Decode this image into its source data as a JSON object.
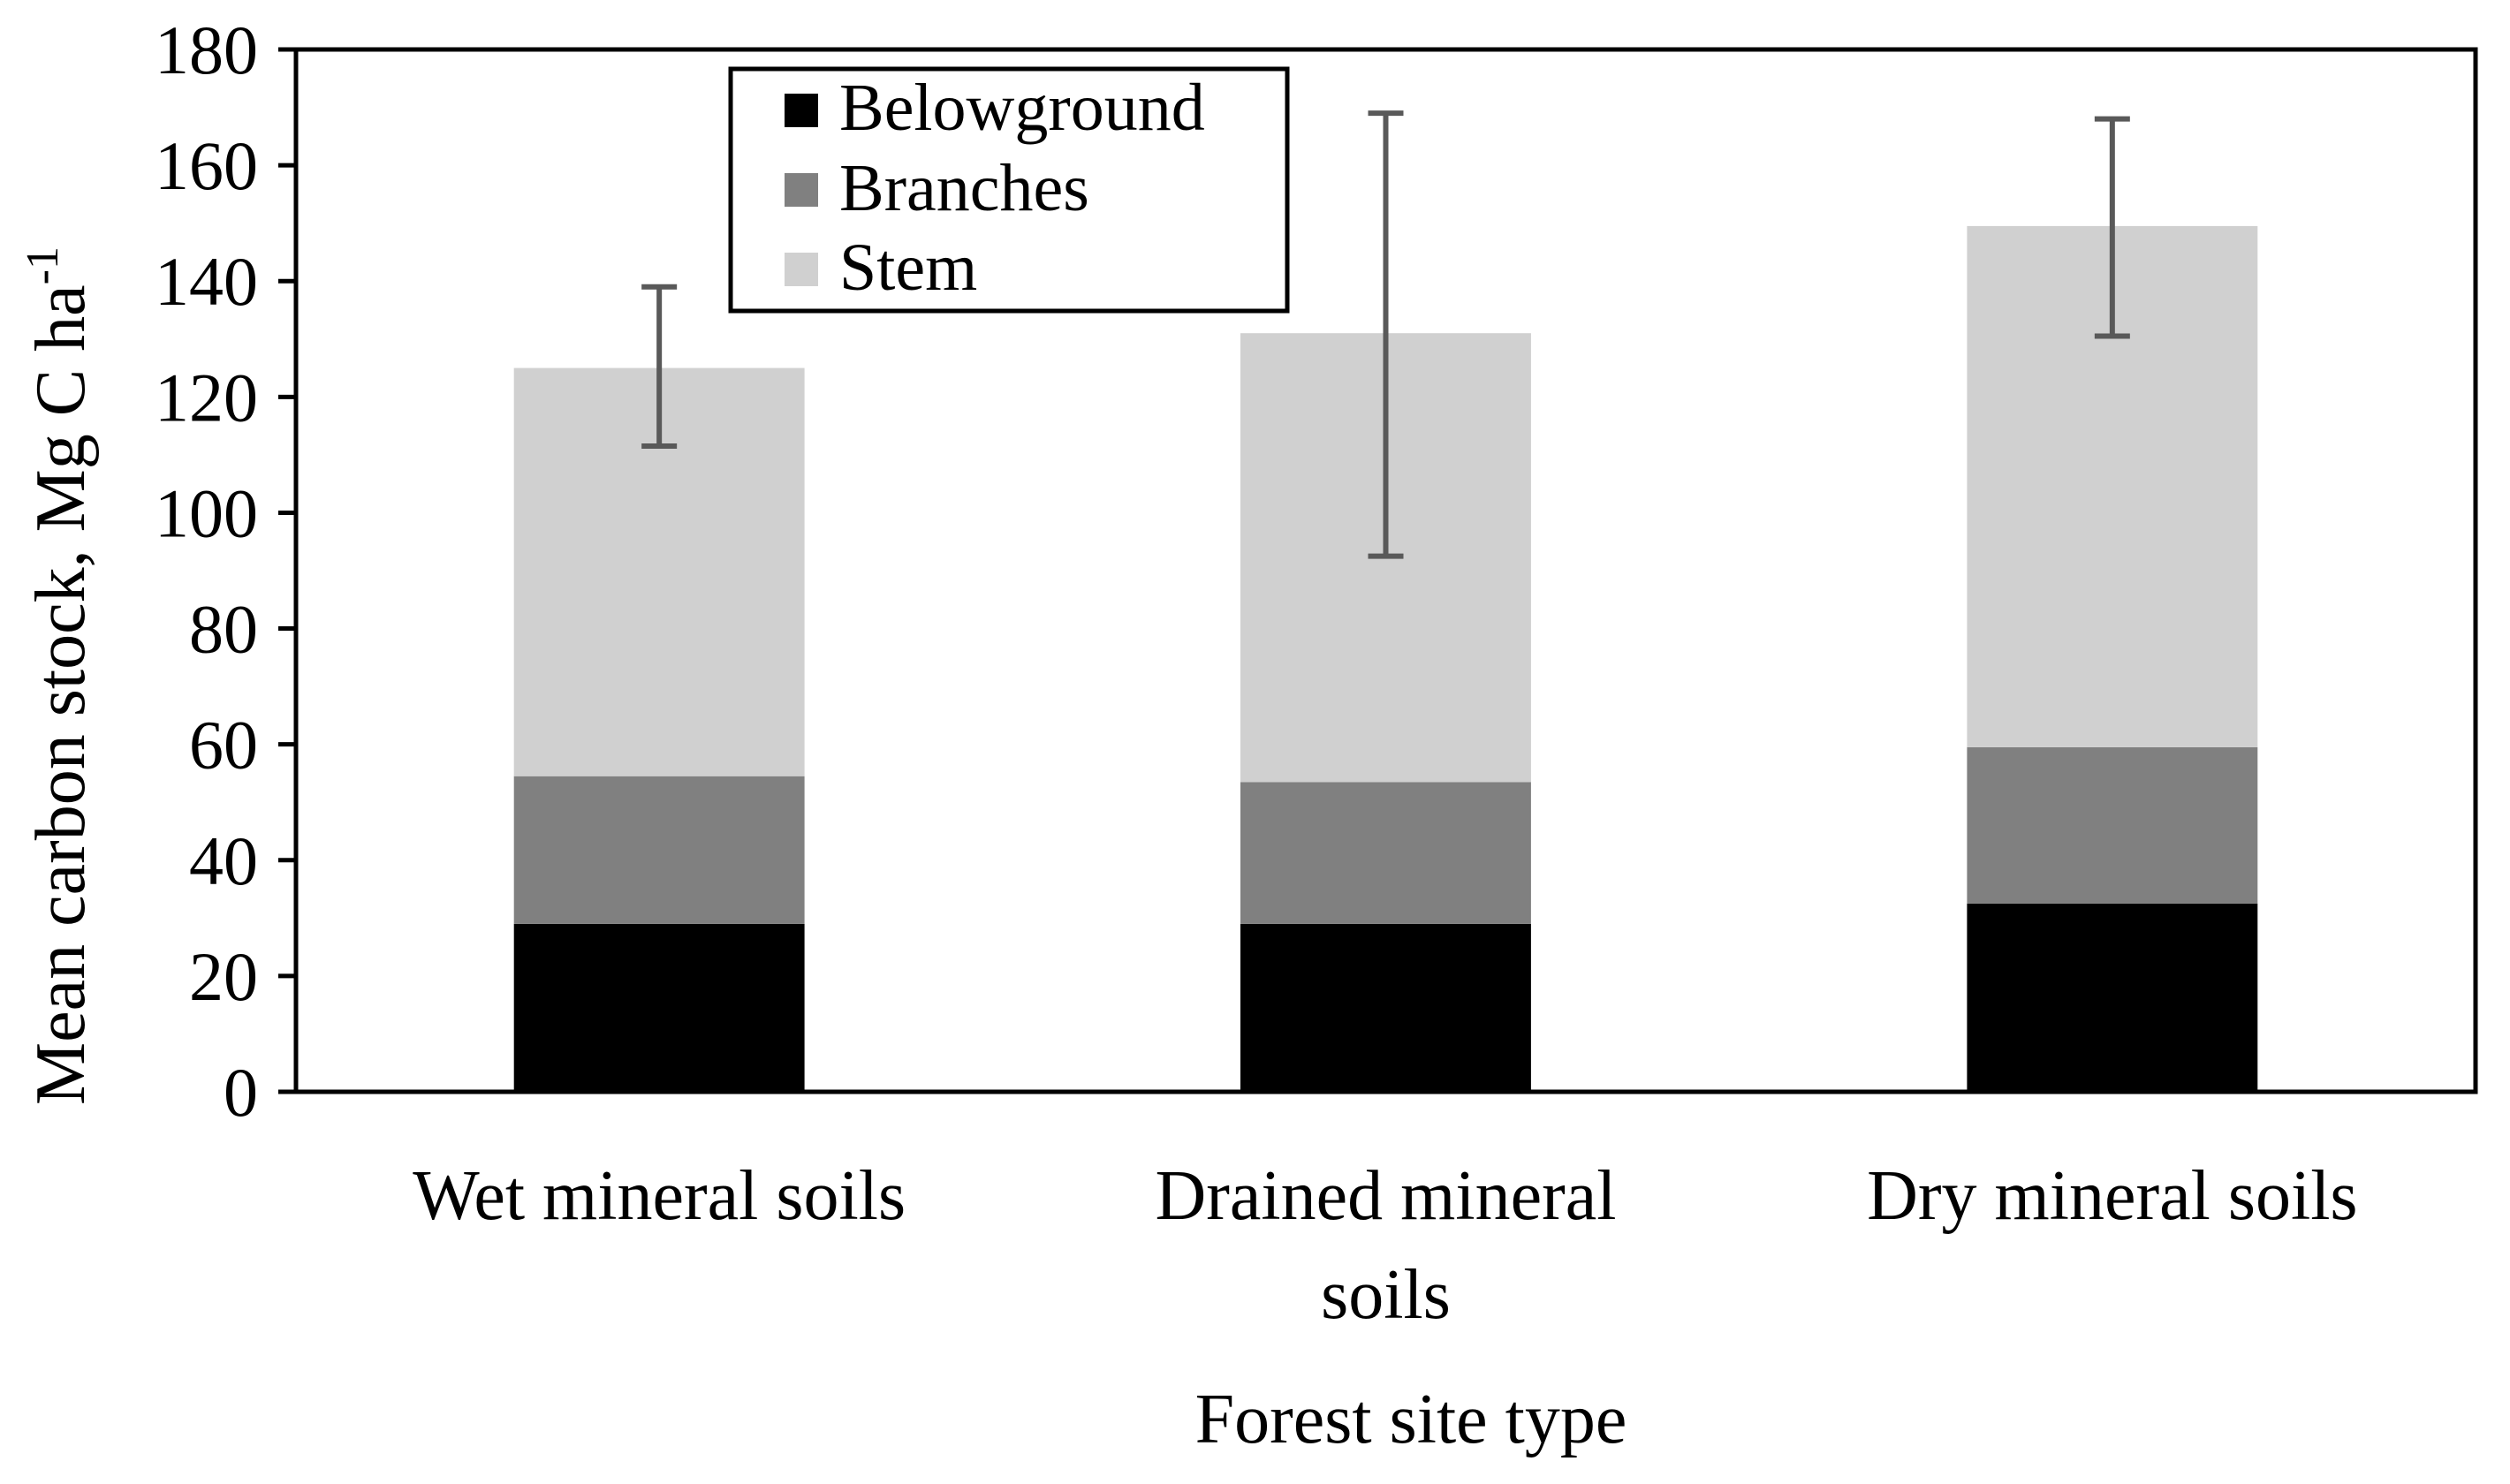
{
  "chart_data": {
    "type": "bar",
    "stacked": true,
    "categories": [
      [
        "Wet mineral soils"
      ],
      [
        "Drained mineral",
        "soils"
      ],
      [
        "Dry mineral soils"
      ]
    ],
    "series": [
      {
        "name": "Belowground",
        "color": "#000000",
        "values": [
          29,
          29,
          32.5
        ]
      },
      {
        "name": "Branches",
        "color": "#808080",
        "values": [
          25.5,
          24.5,
          27
        ]
      },
      {
        "name": "Stem",
        "color": "#d0d0d0",
        "values": [
          70.5,
          77.5,
          90
        ]
      }
    ],
    "error_bars": {
      "color": "#595959",
      "upper": [
        139,
        169,
        168
      ],
      "lower": [
        111.5,
        92.5,
        130.5
      ]
    },
    "xlabel": "Forest site type",
    "ylabel": "Mean carbon stock, Mg C ha",
    "ylabel_superscript": "-1",
    "ylim": [
      0,
      180
    ],
    "yticks": [
      0,
      20,
      40,
      60,
      80,
      100,
      120,
      140,
      160,
      180
    ],
    "grid": false,
    "legend_position": "top-left"
  }
}
